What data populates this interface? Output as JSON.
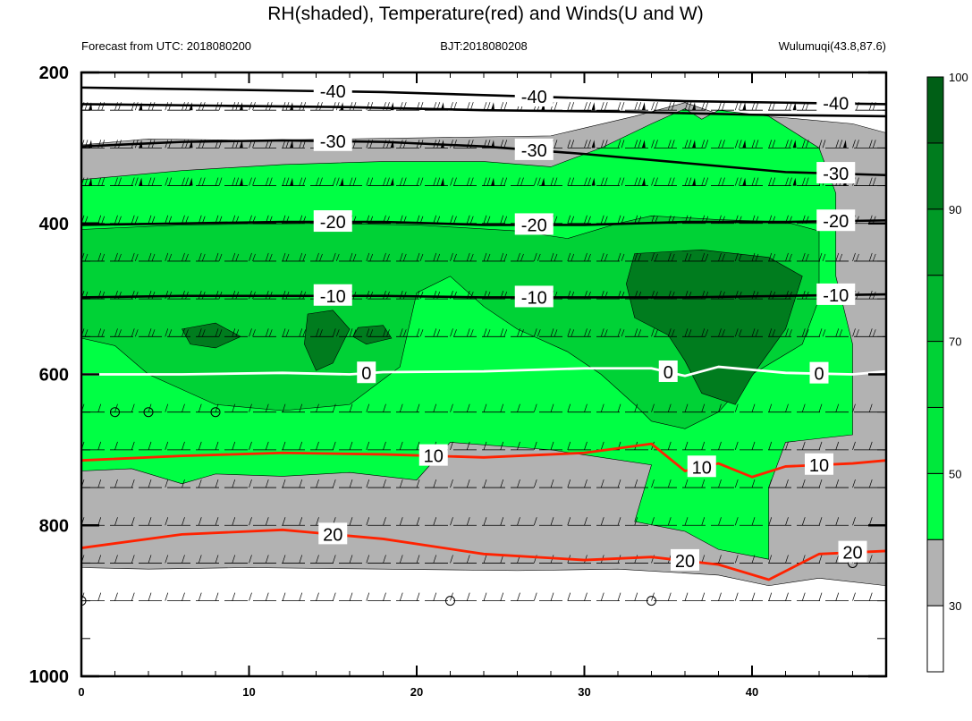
{
  "chart_data": {
    "type": "heatmap",
    "title": "RH(shaded), Temperature(red) and Winds(U and W)",
    "subtitle_left": "Forecast from UTC: 2018080200",
    "subtitle_center": "BJT:2018080208",
    "subtitle_right": "Wulumuqi(43.8,87.6)",
    "x_range": [
      0,
      48
    ],
    "y_range": [
      200,
      1000
    ],
    "x_ticks": [
      "0",
      "10",
      "20",
      "30",
      "40"
    ],
    "y_ticks": [
      "200",
      "400",
      "600",
      "800",
      "1000"
    ],
    "colorbar": {
      "labels": [
        "30",
        "50",
        "70",
        "90",
        "100"
      ],
      "levels": [
        30,
        40,
        50,
        60,
        70,
        80,
        90,
        95,
        100
      ],
      "colors": [
        "#ffffff",
        "#b2b2b2",
        "#00ff44",
        "#00e83c",
        "#00d236",
        "#00b62e",
        "#009a26",
        "#007c1e",
        "#005f16"
      ]
    },
    "rh_regions": [
      {
        "level": "gray",
        "color": "#b2b2b2",
        "points": [
          [
            0,
            296
          ],
          [
            4,
            288
          ],
          [
            10,
            290
          ],
          [
            16,
            288
          ],
          [
            22,
            286
          ],
          [
            28,
            284
          ],
          [
            33,
            258
          ],
          [
            36,
            240
          ],
          [
            38,
            255
          ],
          [
            42,
            260
          ],
          [
            46,
            268
          ],
          [
            48,
            280
          ],
          [
            48,
            880
          ],
          [
            44,
            870
          ],
          [
            41,
            880
          ],
          [
            38,
            866
          ],
          [
            32,
            858
          ],
          [
            26,
            860
          ],
          [
            18,
            858
          ],
          [
            10,
            856
          ],
          [
            4,
            858
          ],
          [
            0,
            856
          ]
        ]
      },
      {
        "level": "green50",
        "color": "#00ff44",
        "points": [
          [
            0,
            342
          ],
          [
            6,
            330
          ],
          [
            12,
            322
          ],
          [
            18,
            318
          ],
          [
            24,
            318
          ],
          [
            28,
            325
          ],
          [
            31,
            300
          ],
          [
            34,
            268
          ],
          [
            36,
            248
          ],
          [
            37,
            262
          ],
          [
            38,
            250
          ],
          [
            41,
            258
          ],
          [
            44,
            300
          ],
          [
            45,
            360
          ],
          [
            45,
            470
          ],
          [
            46,
            560
          ],
          [
            46,
            680
          ],
          [
            42,
            690
          ],
          [
            41,
            750
          ],
          [
            41,
            845
          ],
          [
            38,
            832
          ],
          [
            36,
            808
          ],
          [
            33,
            795
          ],
          [
            34,
            720
          ],
          [
            28,
            700
          ],
          [
            22,
            690
          ],
          [
            20,
            740
          ],
          [
            16,
            730
          ],
          [
            12,
            735
          ],
          [
            8,
            732
          ],
          [
            6,
            745
          ],
          [
            3,
            725
          ],
          [
            0,
            728
          ]
        ]
      },
      {
        "level": "green70",
        "color": "#00d236",
        "points": [
          [
            0,
            408
          ],
          [
            6,
            402
          ],
          [
            14,
            400
          ],
          [
            20,
            402
          ],
          [
            26,
            410
          ],
          [
            29,
            420
          ],
          [
            32,
            400
          ],
          [
            34,
            390
          ],
          [
            38,
            395
          ],
          [
            42,
            398
          ],
          [
            44,
            410
          ],
          [
            44,
            500
          ],
          [
            43,
            560
          ],
          [
            40,
            600
          ],
          [
            38,
            650
          ],
          [
            36,
            672
          ],
          [
            34,
            662
          ],
          [
            33,
            640
          ],
          [
            31,
            600
          ],
          [
            29,
            570
          ],
          [
            26,
            540
          ],
          [
            24,
            510
          ],
          [
            22,
            470
          ],
          [
            20,
            492
          ],
          [
            19,
            590
          ],
          [
            16,
            640
          ],
          [
            12,
            648
          ],
          [
            8,
            640
          ],
          [
            4,
            600
          ],
          [
            2,
            562
          ],
          [
            0,
            552
          ]
        ]
      },
      {
        "level": "green90",
        "color": "#007c1e",
        "points": [
          [
            33,
            440
          ],
          [
            37,
            435
          ],
          [
            41,
            445
          ],
          [
            43,
            470
          ],
          [
            42,
            540
          ],
          [
            40,
            602
          ],
          [
            39,
            640
          ],
          [
            37,
            625
          ],
          [
            36,
            582
          ],
          [
            35,
            548
          ],
          [
            33,
            525
          ],
          [
            32.5,
            480
          ]
        ]
      },
      {
        "level": "green90",
        "color": "#007c1e",
        "points": [
          [
            6,
            540
          ],
          [
            8,
            532
          ],
          [
            9.5,
            550
          ],
          [
            8,
            565
          ],
          [
            6.5,
            560
          ]
        ]
      },
      {
        "level": "green90",
        "color": "#007c1e",
        "points": [
          [
            13.5,
            520
          ],
          [
            15,
            515
          ],
          [
            16,
            540
          ],
          [
            15,
            585
          ],
          [
            14,
            595
          ],
          [
            13.3,
            560
          ]
        ]
      },
      {
        "level": "green90",
        "color": "#007c1e",
        "points": [
          [
            16.5,
            538
          ],
          [
            18,
            535
          ],
          [
            18.5,
            552
          ],
          [
            17,
            560
          ],
          [
            16.2,
            550
          ]
        ]
      }
    ],
    "isotherms": [
      {
        "label": "-40",
        "color": "#000000",
        "points": [
          [
            0,
            220
          ],
          [
            6,
            222
          ],
          [
            12,
            224
          ],
          [
            18,
            226
          ],
          [
            24,
            230
          ],
          [
            30,
            234
          ],
          [
            36,
            238
          ],
          [
            42,
            240
          ],
          [
            48,
            242
          ]
        ]
      },
      {
        "label": "",
        "color": "#000000",
        "points": [
          [
            0,
            242
          ],
          [
            8,
            244
          ],
          [
            16,
            246
          ],
          [
            24,
            250
          ],
          [
            32,
            252
          ],
          [
            40,
            256
          ],
          [
            48,
            258
          ]
        ]
      },
      {
        "label": "-30",
        "color": "#000000",
        "points": [
          [
            0,
            298
          ],
          [
            6,
            292
          ],
          [
            12,
            290
          ],
          [
            18,
            292
          ],
          [
            24,
            298
          ],
          [
            30,
            308
          ],
          [
            36,
            320
          ],
          [
            42,
            332
          ],
          [
            48,
            336
          ]
        ]
      },
      {
        "label": "-20",
        "color": "#000000",
        "points": [
          [
            0,
            402
          ],
          [
            6,
            400
          ],
          [
            12,
            398
          ],
          [
            18,
            398
          ],
          [
            24,
            402
          ],
          [
            30,
            402
          ],
          [
            36,
            398
          ],
          [
            42,
            398
          ],
          [
            48,
            396
          ]
        ]
      },
      {
        "label": "-10",
        "color": "#000000",
        "points": [
          [
            0,
            498
          ],
          [
            6,
            496
          ],
          [
            12,
            496
          ],
          [
            18,
            496
          ],
          [
            24,
            498
          ],
          [
            30,
            498
          ],
          [
            36,
            498
          ],
          [
            42,
            496
          ],
          [
            48,
            494
          ]
        ]
      },
      {
        "label": "0",
        "color": "#ffffff",
        "points": [
          [
            0,
            600
          ],
          [
            6,
            600
          ],
          [
            12,
            598
          ],
          [
            16,
            600
          ],
          [
            18,
            597
          ],
          [
            24,
            596
          ],
          [
            30,
            592
          ],
          [
            34,
            592
          ],
          [
            36,
            602
          ],
          [
            38,
            590
          ],
          [
            42,
            598
          ],
          [
            46,
            600
          ],
          [
            48,
            596
          ]
        ]
      },
      {
        "label": "10",
        "color": "#ff2200",
        "points": [
          [
            0,
            714
          ],
          [
            6,
            708
          ],
          [
            12,
            704
          ],
          [
            18,
            706
          ],
          [
            24,
            710
          ],
          [
            30,
            704
          ],
          [
            34,
            692
          ],
          [
            36,
            728
          ],
          [
            38,
            718
          ],
          [
            40,
            736
          ],
          [
            42,
            722
          ],
          [
            46,
            718
          ],
          [
            48,
            714
          ]
        ]
      },
      {
        "label": "20",
        "color": "#ff2200",
        "points": [
          [
            0,
            830
          ],
          [
            6,
            812
          ],
          [
            12,
            806
          ],
          [
            18,
            818
          ],
          [
            24,
            838
          ],
          [
            30,
            846
          ],
          [
            34,
            842
          ],
          [
            38,
            852
          ],
          [
            41,
            872
          ],
          [
            44,
            838
          ],
          [
            48,
            834
          ]
        ]
      }
    ],
    "wind_levels": [
      250,
      300,
      350,
      400,
      450,
      500,
      550,
      650,
      700,
      750,
      800,
      850,
      900
    ],
    "calm_markers": [
      [
        2,
        650
      ],
      [
        4,
        650
      ],
      [
        8,
        650
      ],
      [
        0,
        900
      ],
      [
        22,
        900
      ],
      [
        34,
        900
      ],
      [
        46,
        850
      ]
    ]
  }
}
